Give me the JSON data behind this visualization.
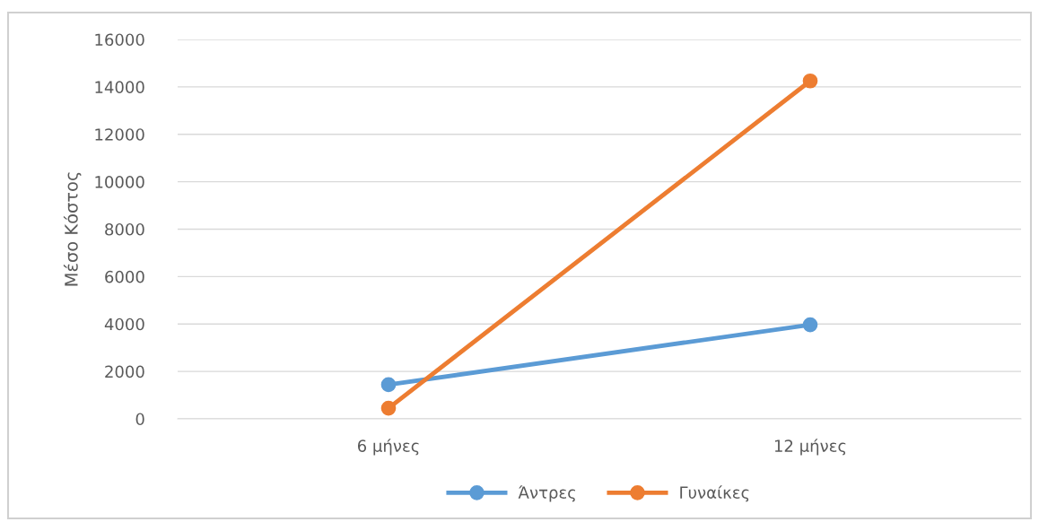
{
  "chart_data": {
    "type": "line",
    "ylabel": "Μέσο Κόστος",
    "categories": [
      "6 μήνες",
      "12 μήνες"
    ],
    "series": [
      {
        "name": "Άντρες",
        "color": "#5b9bd5",
        "values": [
          1440,
          3970
        ]
      },
      {
        "name": "Γυναίκες",
        "color": "#ed7d31",
        "values": [
          450,
          14250
        ]
      }
    ],
    "ylim": [
      0,
      16000
    ],
    "yticks": [
      0,
      2000,
      4000,
      6000,
      8000,
      10000,
      12000,
      14000,
      16000
    ],
    "grid": "y",
    "legend": "bottom",
    "marker": "circle",
    "line_style": "solid"
  }
}
